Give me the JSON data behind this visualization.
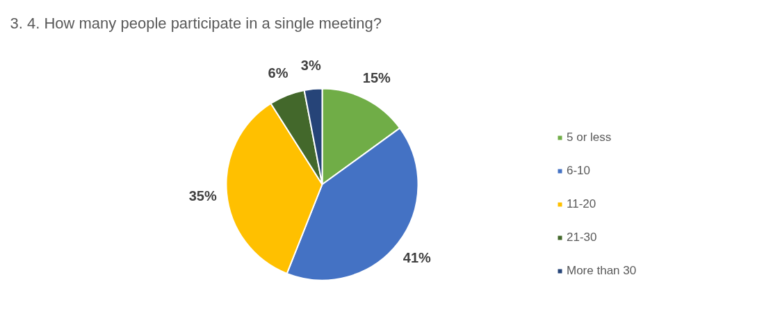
{
  "chart_data": {
    "type": "pie",
    "title": "3. 4. How many people participate in a single meeting?",
    "categories": [
      "5 or less",
      "6-10",
      "11-20",
      "21-30",
      "More than 30"
    ],
    "values": [
      15,
      41,
      35,
      6,
      3
    ],
    "colors": [
      "#70ad47",
      "#4472c4",
      "#ffc000",
      "#43682b",
      "#264478"
    ],
    "value_labels": [
      "15%",
      "41%",
      "35%",
      "6%",
      "3%"
    ],
    "legend": "right"
  }
}
